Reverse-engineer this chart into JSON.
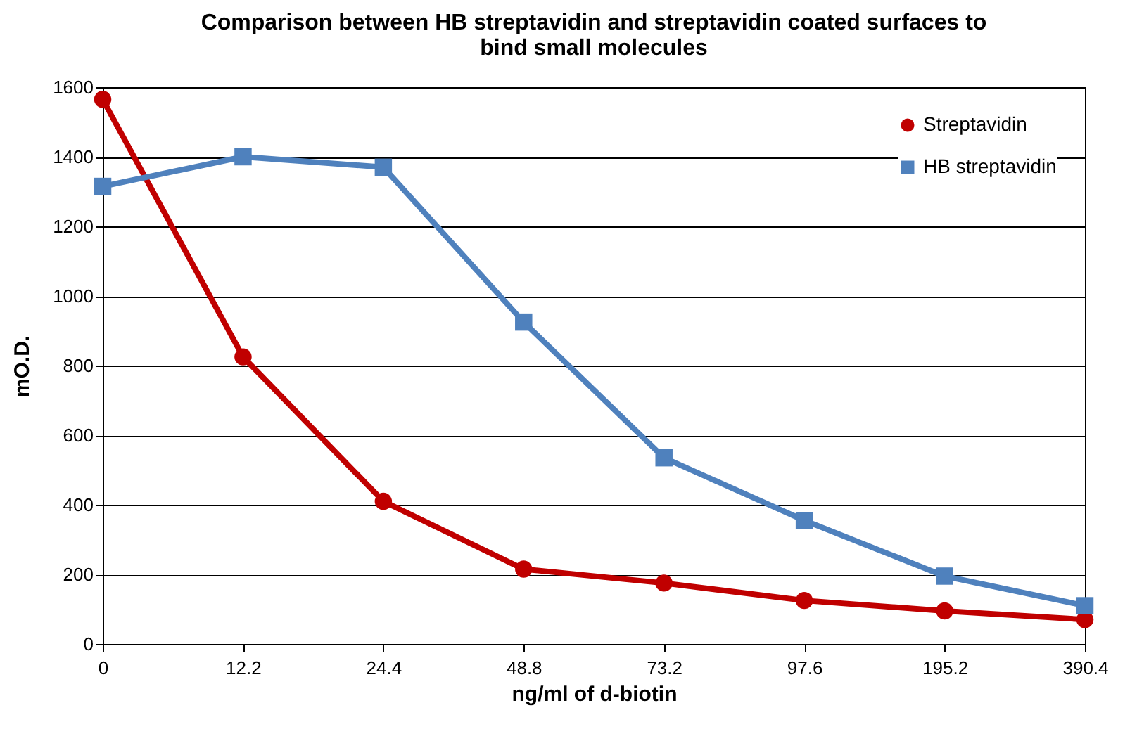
{
  "chart_data": {
    "type": "line",
    "title": "Comparison between HB streptavidin and streptavidin coated surfaces to bind small molecules",
    "xlabel": "ng/ml of d-biotin",
    "ylabel": "mO.D.",
    "categories": [
      "0",
      "12.2",
      "24.4",
      "48.8",
      "73.2",
      "97.6",
      "195.2",
      "390.4"
    ],
    "series": [
      {
        "name": "Streptavidin",
        "color": "#c00000",
        "marker": "circle",
        "values": [
          1565,
          825,
          410,
          215,
          175,
          125,
          95,
          70
        ]
      },
      {
        "name": "HB streptavidin",
        "color": "#4f81bd",
        "marker": "square",
        "values": [
          1315,
          1400,
          1370,
          925,
          535,
          355,
          195,
          110
        ]
      }
    ],
    "ylim": [
      0,
      1600
    ],
    "yticks": [
      0,
      200,
      400,
      600,
      800,
      1000,
      1200,
      1400,
      1600
    ],
    "grid": "y",
    "legend": "top right"
  }
}
